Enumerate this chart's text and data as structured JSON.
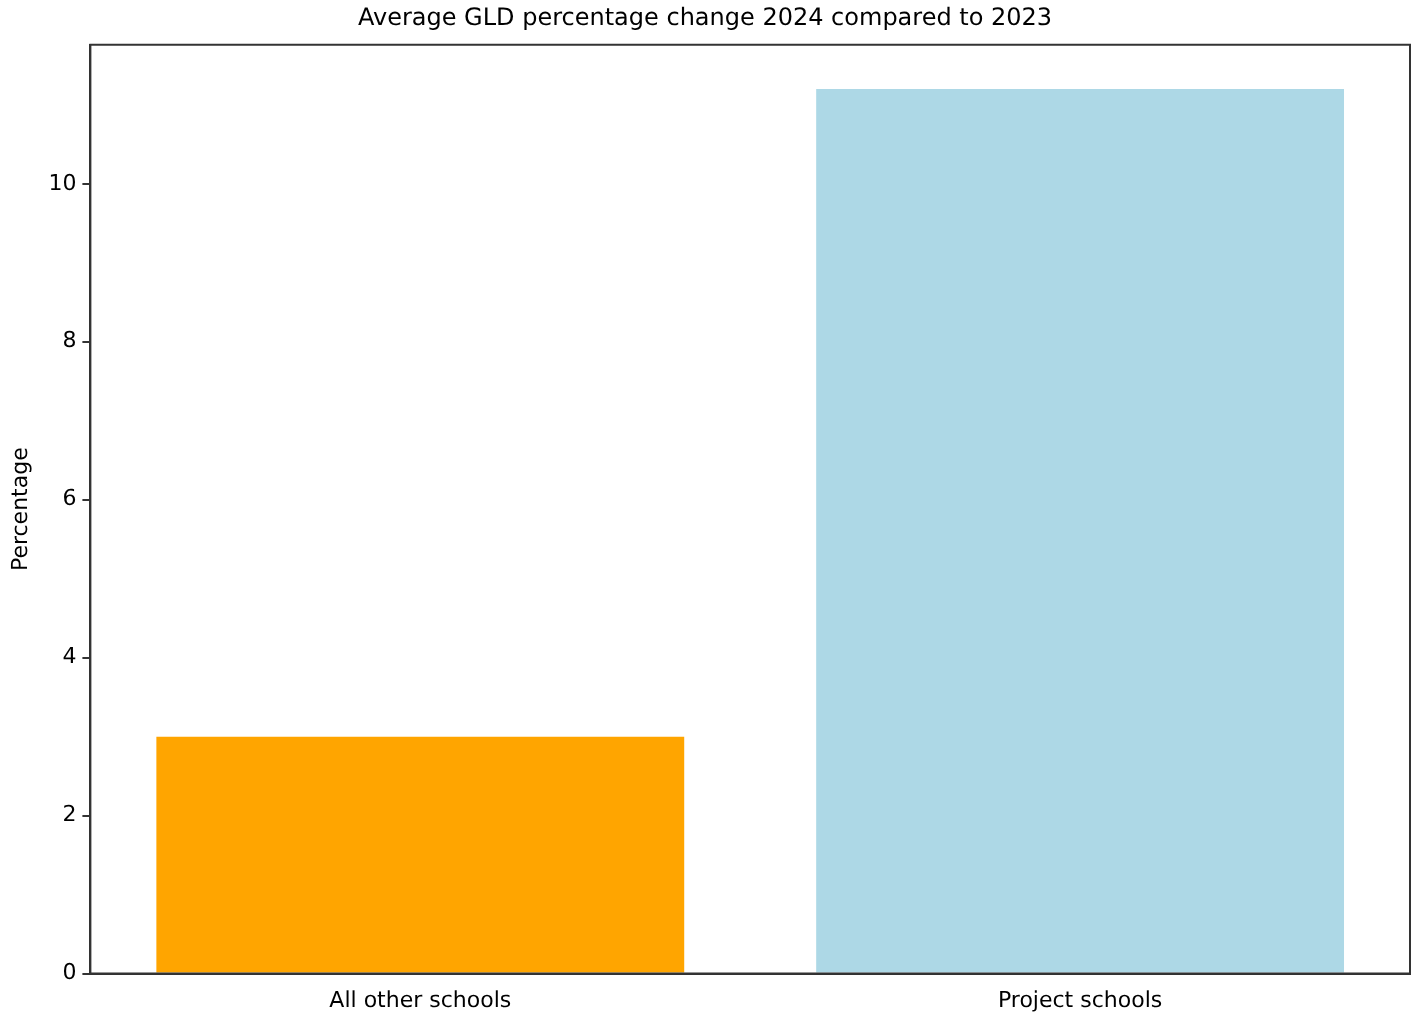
{
  "chart_data": {
    "type": "bar",
    "title": "Average GLD percentage change 2024 compared to 2023",
    "ylabel": "Percentage",
    "categories": [
      "All other schools",
      "Project schools"
    ],
    "values": [
      3.0,
      11.2
    ],
    "colors": [
      "#ffa500",
      "#add8e6"
    ],
    "ylim": [
      0,
      11.76
    ],
    "yticks": [
      0,
      2,
      4,
      6,
      8,
      10
    ],
    "grid": false,
    "legend": false
  }
}
